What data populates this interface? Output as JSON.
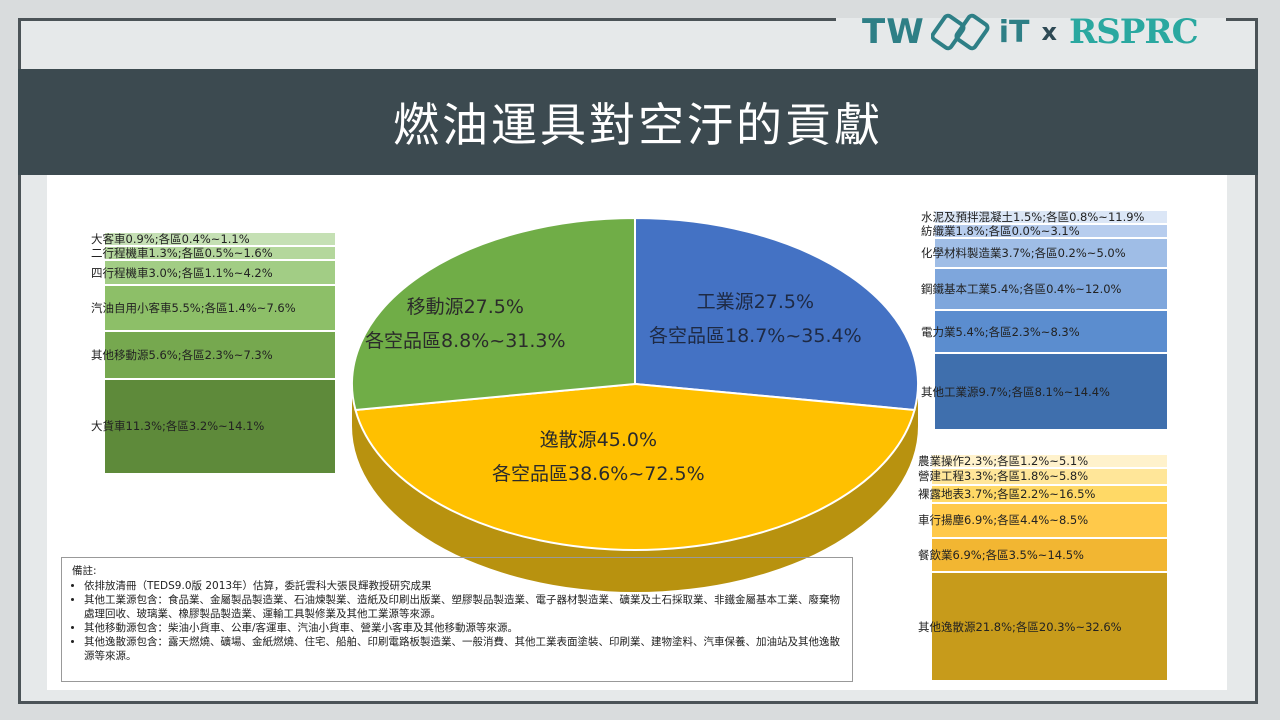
{
  "title": "燃油運具對空汙的貢獻",
  "logo": {
    "left": "TW",
    "middle": "iT",
    "x": "x",
    "right": "RSPRC"
  },
  "colors": {
    "industrial": "#4472c4",
    "mobile": "#70ad47",
    "fugitive": "#ffc000",
    "fugitive_side": "#b8920f"
  },
  "chart_data": {
    "type": "pie",
    "slices": [
      {
        "name": "工業源",
        "value": 27.5,
        "label1": "工業源27.5%",
        "label2": "各空品區18.7%~35.4%"
      },
      {
        "name": "逸散源",
        "value": 45.0,
        "label1": "逸散源45.0%",
        "label2": "各空品區38.6%~72.5%"
      },
      {
        "name": "移動源",
        "value": 27.5,
        "label1": "移動源27.5%",
        "label2": "各空品區8.8%~31.3%"
      }
    ],
    "mobile_breakdown": [
      {
        "label": "大客車0.9%;各區0.4%~1.1%",
        "value": 0.9
      },
      {
        "label": "二行程機車1.3%;各區0.5%~1.6%",
        "value": 1.3
      },
      {
        "label": "四行程機車3.0%;各區1.1%~4.2%",
        "value": 3.0
      },
      {
        "label": "汽油自用小客車5.5%;各區1.4%~7.6%",
        "value": 5.5
      },
      {
        "label": "其他移動源5.6%;各區2.3%~7.3%",
        "value": 5.6
      },
      {
        "label": "大貨車11.3%;各區3.2%~14.1%",
        "value": 11.3
      }
    ],
    "industrial_breakdown": [
      {
        "label": "水泥及預拌混凝土1.5%;各區0.8%~11.9%",
        "value": 1.5
      },
      {
        "label": "紡織業1.8%;各區0.0%~3.1%",
        "value": 1.8
      },
      {
        "label": "化學材料製造業3.7%;各區0.2%~5.0%",
        "value": 3.7
      },
      {
        "label": "鋼鐵基本工業5.4%;各區0.4%~12.0%",
        "value": 5.4
      },
      {
        "label": "電力業5.4%;各區2.3%~8.3%",
        "value": 5.4
      },
      {
        "label": "其他工業源9.7%;各區8.1%~14.4%",
        "value": 9.7
      }
    ],
    "fugitive_breakdown": [
      {
        "label": "農業操作2.3%;各區1.2%~5.1%",
        "value": 2.3
      },
      {
        "label": "營建工程3.3%;各區1.8%~5.8%",
        "value": 3.3
      },
      {
        "label": "裸露地表3.7%;各區2.2%~16.5%",
        "value": 3.7
      },
      {
        "label": "車行揚塵6.9%;各區4.4%~8.5%",
        "value": 6.9
      },
      {
        "label": "餐飲業6.9%;各區3.5%~14.5%",
        "value": 6.9
      },
      {
        "label": "其他逸散源21.8%;各區20.3%~32.6%",
        "value": 21.8
      }
    ]
  },
  "notes": {
    "heading": "備註:",
    "items": [
      "依排放清冊（TEDS9.0版 2013年）估算，委託雲科大張艮輝教授研究成果",
      "其他工業源包含：食品業、金屬製品製造業、石油煉製業、造紙及印刷出版業、塑膠製品製造業、電子器材製造業、礦業及土石採取業、非鐵金屬基本工業、廢棄物處理回收、玻璃業、橡膠製品製造業、運輸工具製修業及其他工業源等來源。",
      "其他移動源包含：柴油小貨車、公車/客運車、汽油小貨車、營業小客車及其他移動源等來源。",
      "其他逸散源包含：露天燃燒、礦場、金紙燃燒、住宅、船舶、印刷電路板製造業、一般消費、其他工業表面塗裝、印刷業、建物塗料、汽車保養、加油站及其他逸散源等來源。"
    ]
  }
}
